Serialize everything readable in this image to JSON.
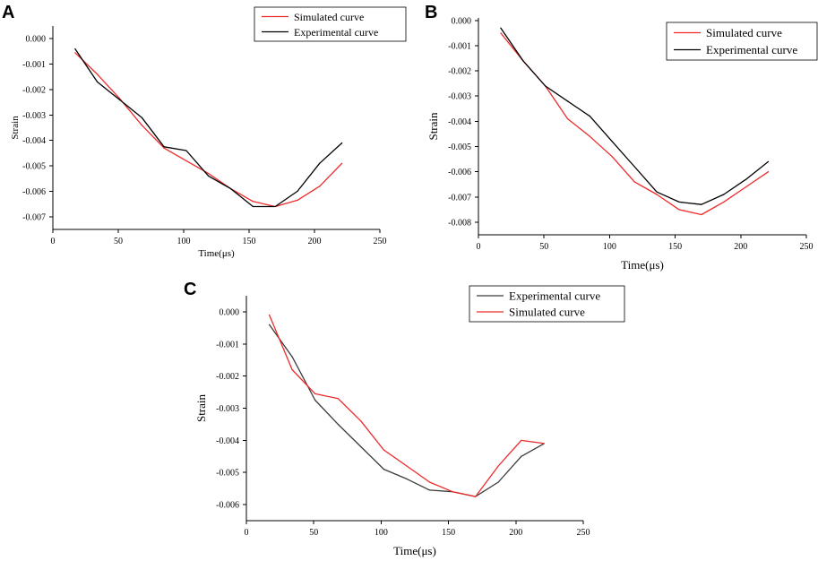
{
  "colors": {
    "simulated": "#ee2a2a",
    "experimental_ab": "#000000",
    "experimental_c": "#3a3a3a"
  },
  "chart_data": [
    {
      "panel": "A",
      "type": "line",
      "xlabel": "Time(μs)",
      "ylabel": "Strain",
      "xlim": [
        0,
        250
      ],
      "ylim": [
        -0.0075,
        0.0005
      ],
      "xticks": [
        0,
        50,
        100,
        150,
        200,
        250
      ],
      "yticks": [
        0,
        -0.001,
        -0.002,
        -0.003,
        -0.004,
        -0.005,
        -0.006,
        -0.007
      ],
      "ytick_labels": [
        "0.000",
        "-0.001",
        "-0.002",
        "-0.003",
        "-0.004",
        "-0.005",
        "-0.006",
        "-0.007"
      ],
      "legend": [
        "Simulated curve",
        "Experimental curve"
      ],
      "series": [
        {
          "name": "Simulated curve",
          "color": "#ee2a2a",
          "x": [
            17,
            34,
            51,
            68,
            85,
            102,
            119,
            136,
            153,
            170,
            187,
            204,
            221
          ],
          "y": [
            -0.00055,
            -0.0014,
            -0.00235,
            -0.0034,
            -0.0043,
            -0.0048,
            -0.0053,
            -0.0059,
            -0.0064,
            -0.0066,
            -0.00635,
            -0.0058,
            -0.0049
          ]
        },
        {
          "name": "Experimental curve",
          "color": "#000000",
          "x": [
            17,
            34,
            51,
            68,
            85,
            102,
            119,
            136,
            153,
            170,
            187,
            204,
            221
          ],
          "y": [
            -0.0004,
            -0.0017,
            -0.0024,
            -0.0031,
            -0.00425,
            -0.0044,
            -0.0054,
            -0.0059,
            -0.0066,
            -0.0066,
            -0.006,
            -0.0049,
            -0.0041
          ]
        }
      ]
    },
    {
      "panel": "B",
      "type": "line",
      "xlabel": "Time(μs)",
      "ylabel": "Strain",
      "xlim": [
        0,
        250
      ],
      "ylim": [
        -0.0085,
        0.0001
      ],
      "xticks": [
        0,
        50,
        100,
        150,
        200,
        250
      ],
      "yticks": [
        0,
        -0.001,
        -0.002,
        -0.003,
        -0.004,
        -0.005,
        -0.006,
        -0.007,
        -0.008
      ],
      "ytick_labels": [
        "0.000",
        "-0.001",
        "-0.002",
        "-0.003",
        "-0.004",
        "-0.005",
        "-0.006",
        "-0.007",
        "-0.008"
      ],
      "legend": [
        "Simulated curve",
        "Experimental curve"
      ],
      "series": [
        {
          "name": "Simulated curve",
          "color": "#ee2a2a",
          "x": [
            17,
            34,
            51,
            68,
            85,
            102,
            119,
            136,
            153,
            170,
            187,
            204,
            221
          ],
          "y": [
            -0.0005,
            -0.0016,
            -0.0026,
            -0.0039,
            -0.0046,
            -0.0054,
            -0.0064,
            -0.0069,
            -0.0075,
            -0.0077,
            -0.0072,
            -0.0066,
            -0.006
          ]
        },
        {
          "name": "Experimental curve",
          "color": "#000000",
          "x": [
            17,
            34,
            51,
            68,
            85,
            102,
            119,
            136,
            153,
            170,
            187,
            204,
            221
          ],
          "y": [
            -0.0003,
            -0.0016,
            -0.0026,
            -0.0032,
            -0.0038,
            -0.0048,
            -0.0058,
            -0.0068,
            -0.0072,
            -0.0073,
            -0.0069,
            -0.0063,
            -0.0056
          ]
        }
      ]
    },
    {
      "panel": "C",
      "type": "line",
      "xlabel": "Time(μs)",
      "ylabel": "Strain",
      "xlim": [
        0,
        250
      ],
      "ylim": [
        -0.0065,
        0.0005
      ],
      "xticks": [
        0,
        50,
        100,
        150,
        200,
        250
      ],
      "yticks": [
        0,
        -0.001,
        -0.002,
        -0.003,
        -0.004,
        -0.005,
        -0.006
      ],
      "ytick_labels": [
        "0.000",
        "-0.001",
        "-0.002",
        "-0.003",
        "-0.004",
        "-0.005",
        "-0.006"
      ],
      "legend": [
        "Experimental curve",
        "Simulated curve"
      ],
      "series": [
        {
          "name": "Experimental curve",
          "color": "#3a3a3a",
          "x": [
            17,
            34,
            51,
            68,
            85,
            102,
            119,
            136,
            153,
            170,
            187,
            204,
            221
          ],
          "y": [
            -0.0004,
            -0.0014,
            -0.00275,
            -0.0035,
            -0.0042,
            -0.0049,
            -0.0052,
            -0.00555,
            -0.0056,
            -0.00575,
            -0.0053,
            -0.0045,
            -0.0041
          ]
        },
        {
          "name": "Simulated curve",
          "color": "#ee2a2a",
          "x": [
            17,
            34,
            51,
            68,
            85,
            102,
            119,
            136,
            153,
            170,
            187,
            204,
            221
          ],
          "y": [
            -0.0001,
            -0.0018,
            -0.00255,
            -0.0027,
            -0.0034,
            -0.0043,
            -0.0048,
            -0.0053,
            -0.0056,
            -0.00575,
            -0.0048,
            -0.004,
            -0.0041
          ]
        }
      ]
    }
  ]
}
